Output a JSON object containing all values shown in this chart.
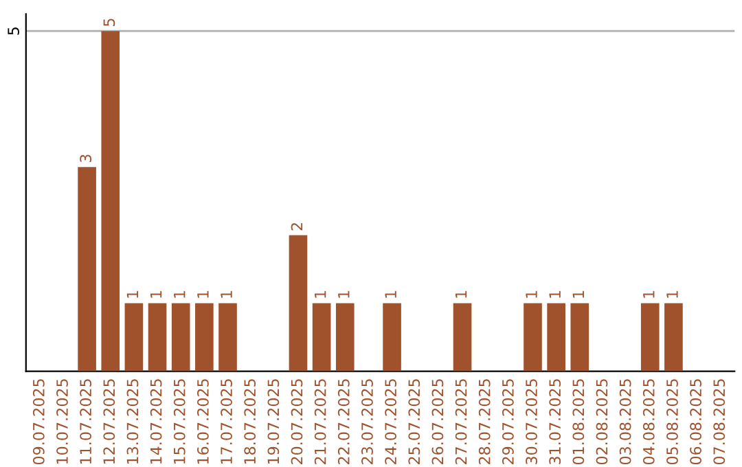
{
  "chart_data": {
    "type": "bar",
    "categories": [
      "09.07.2025",
      "10.07.2025",
      "11.07.2025",
      "12.07.2025",
      "13.07.2025",
      "14.07.2025",
      "15.07.2025",
      "16.07.2025",
      "17.07.2025",
      "18.07.2025",
      "19.07.2025",
      "20.07.2025",
      "21.07.2025",
      "22.07.2025",
      "23.07.2025",
      "24.07.2025",
      "25.07.2025",
      "26.07.2025",
      "27.07.2025",
      "28.07.2025",
      "29.07.2025",
      "30.07.2025",
      "31.07.2025",
      "01.08.2025",
      "02.08.2025",
      "03.08.2025",
      "04.08.2025",
      "05.08.2025",
      "06.08.2025",
      "07.08.2025"
    ],
    "values": [
      0,
      0,
      3,
      5,
      1,
      1,
      1,
      1,
      1,
      0,
      0,
      2,
      1,
      1,
      0,
      1,
      0,
      0,
      1,
      0,
      0,
      1,
      1,
      1,
      0,
      0,
      1,
      1,
      0,
      0
    ],
    "value_labels": [
      null,
      null,
      "3",
      "5",
      "1",
      "1",
      "1",
      "1",
      "1",
      null,
      null,
      "2",
      "1",
      "1",
      null,
      "1",
      null,
      null,
      "1",
      null,
      null,
      "1",
      "1",
      "1",
      null,
      null,
      "1",
      "1",
      null,
      null
    ],
    "color": "#a0522d",
    "ylim": [
      0,
      5.25
    ],
    "yticks": [
      5
    ],
    "grid": "y"
  }
}
